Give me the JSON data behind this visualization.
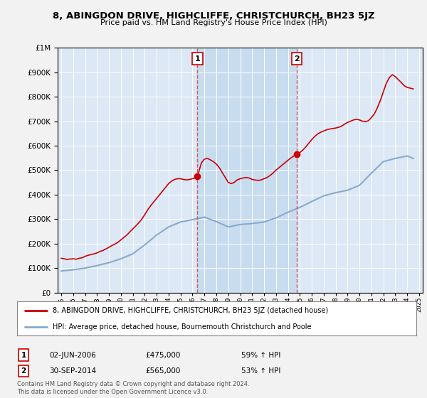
{
  "title": "8, ABINGDON DRIVE, HIGHCLIFFE, CHRISTCHURCH, BH23 5JZ",
  "subtitle": "Price paid vs. HM Land Registry's House Price Index (HPI)",
  "background_color": "#f2f2f2",
  "plot_bg_color": "#dce8f5",
  "highlight_color": "#c8dcf0",
  "red_line_color": "#cc0000",
  "blue_line_color": "#88aacc",
  "vline_color": "#cc4444",
  "sale1_date_label": "02-JUN-2006",
  "sale1_price_label": "£475,000",
  "sale1_hpi_label": "59% ↑ HPI",
  "sale1_year": 2006.42,
  "sale1_price": 475000,
  "sale2_date_label": "30-SEP-2014",
  "sale2_price_label": "£565,000",
  "sale2_hpi_label": "53% ↑ HPI",
  "sale2_year": 2014.75,
  "sale2_price": 565000,
  "legend_line1": "8, ABINGDON DRIVE, HIGHCLIFFE, CHRISTCHURCH, BH23 5JZ (detached house)",
  "legend_line2": "HPI: Average price, detached house, Bournemouth Christchurch and Poole",
  "footer1": "Contains HM Land Registry data © Crown copyright and database right 2024.",
  "footer2": "This data is licensed under the Open Government Licence v3.0.",
  "red_years": [
    1995.0,
    1995.25,
    1995.5,
    1995.75,
    1996.0,
    1996.25,
    1996.5,
    1996.75,
    1997.0,
    1997.25,
    1997.5,
    1997.75,
    1998.0,
    1998.25,
    1998.5,
    1998.75,
    1999.0,
    1999.25,
    1999.5,
    1999.75,
    2000.0,
    2000.25,
    2000.5,
    2000.75,
    2001.0,
    2001.25,
    2001.5,
    2001.75,
    2002.0,
    2002.25,
    2002.5,
    2002.75,
    2003.0,
    2003.25,
    2003.5,
    2003.75,
    2004.0,
    2004.25,
    2004.5,
    2004.75,
    2005.0,
    2005.25,
    2005.5,
    2005.75,
    2006.0,
    2006.25,
    2006.42,
    2006.75,
    2007.0,
    2007.25,
    2007.5,
    2007.75,
    2008.0,
    2008.25,
    2008.5,
    2008.75,
    2009.0,
    2009.25,
    2009.5,
    2009.75,
    2010.0,
    2010.25,
    2010.5,
    2010.75,
    2011.0,
    2011.25,
    2011.5,
    2011.75,
    2012.0,
    2012.25,
    2012.5,
    2012.75,
    2013.0,
    2013.25,
    2013.5,
    2013.75,
    2014.0,
    2014.25,
    2014.5,
    2014.75,
    2015.0,
    2015.25,
    2015.5,
    2015.75,
    2016.0,
    2016.25,
    2016.5,
    2016.75,
    2017.0,
    2017.25,
    2017.5,
    2017.75,
    2018.0,
    2018.25,
    2018.5,
    2018.75,
    2019.0,
    2019.25,
    2019.5,
    2019.75,
    2020.0,
    2020.25,
    2020.5,
    2020.75,
    2021.0,
    2021.25,
    2021.5,
    2021.75,
    2022.0,
    2022.25,
    2022.5,
    2022.75,
    2023.0,
    2023.25,
    2023.5,
    2023.75,
    2024.0,
    2024.25,
    2024.5
  ],
  "red_values": [
    140000,
    138000,
    135000,
    137000,
    138000,
    136000,
    140000,
    142000,
    148000,
    152000,
    155000,
    158000,
    162000,
    168000,
    172000,
    178000,
    185000,
    192000,
    198000,
    205000,
    215000,
    225000,
    235000,
    248000,
    260000,
    272000,
    285000,
    300000,
    318000,
    338000,
    355000,
    370000,
    385000,
    400000,
    415000,
    430000,
    445000,
    455000,
    462000,
    465000,
    465000,
    462000,
    460000,
    462000,
    465000,
    468000,
    475000,
    530000,
    545000,
    548000,
    542000,
    535000,
    525000,
    510000,
    490000,
    470000,
    450000,
    445000,
    450000,
    460000,
    465000,
    468000,
    470000,
    468000,
    462000,
    460000,
    458000,
    460000,
    465000,
    470000,
    478000,
    488000,
    500000,
    510000,
    520000,
    530000,
    540000,
    550000,
    558000,
    565000,
    572000,
    582000,
    595000,
    610000,
    625000,
    638000,
    648000,
    655000,
    660000,
    665000,
    668000,
    670000,
    672000,
    675000,
    680000,
    688000,
    695000,
    700000,
    705000,
    708000,
    705000,
    700000,
    698000,
    702000,
    715000,
    730000,
    755000,
    785000,
    820000,
    855000,
    878000,
    890000,
    882000,
    870000,
    858000,
    845000,
    838000,
    835000,
    832000
  ],
  "blue_years": [
    1995.0,
    1996.0,
    1997.0,
    1998.0,
    1999.0,
    2000.0,
    2001.0,
    2002.0,
    2003.0,
    2004.0,
    2005.0,
    2006.0,
    2007.0,
    2008.0,
    2009.0,
    2010.0,
    2011.0,
    2012.0,
    2013.0,
    2014.0,
    2015.0,
    2016.0,
    2017.0,
    2018.0,
    2019.0,
    2020.0,
    2021.0,
    2022.0,
    2023.0,
    2024.0,
    2024.5
  ],
  "blue_values": [
    88000,
    93000,
    100000,
    110000,
    122000,
    138000,
    158000,
    195000,
    235000,
    268000,
    288000,
    298000,
    308000,
    290000,
    268000,
    278000,
    282000,
    288000,
    305000,
    328000,
    348000,
    372000,
    395000,
    408000,
    418000,
    438000,
    488000,
    535000,
    548000,
    558000,
    548000
  ],
  "ylim_max": 1000000,
  "xlim_min": 1994.7,
  "xlim_max": 2025.3
}
